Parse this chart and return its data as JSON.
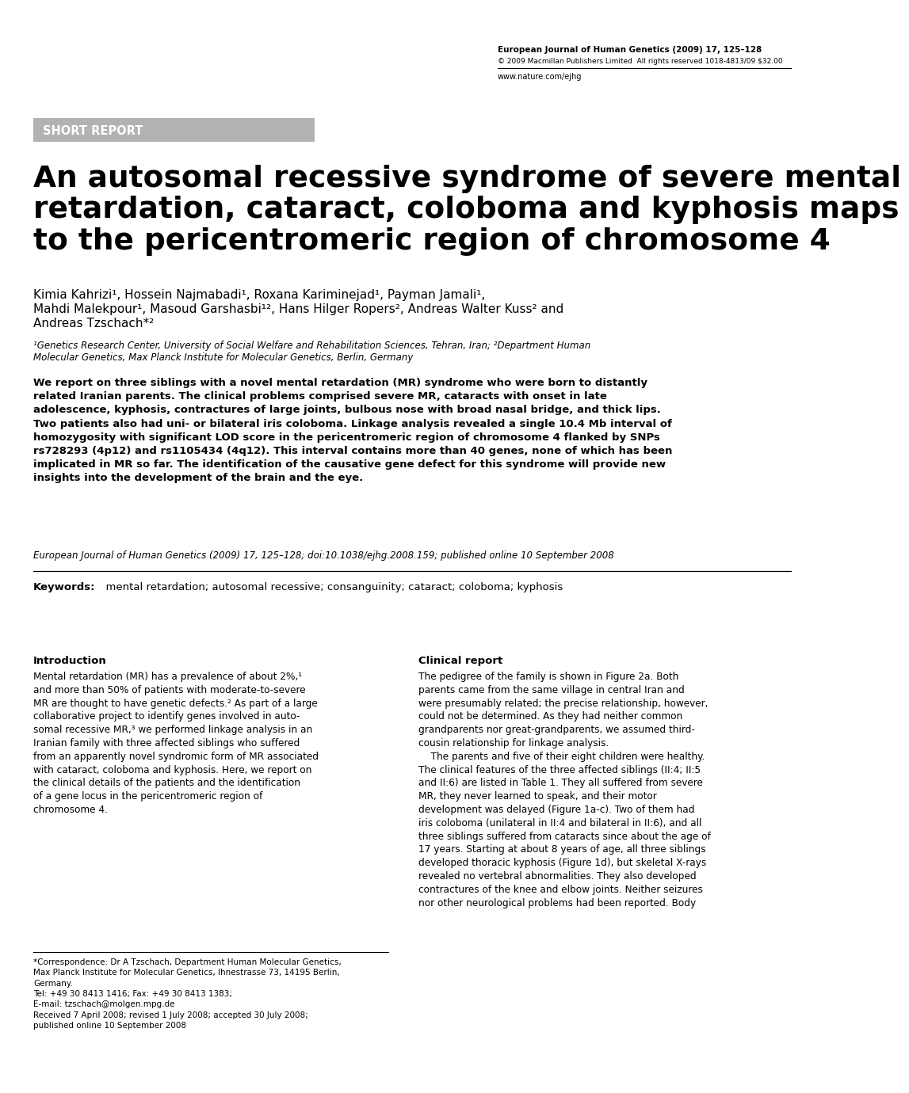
{
  "bg_color": "#ffffff",
  "journal_line1": "European Journal of Human Genetics (2009) 17, 125–128",
  "journal_line2": "© 2009 Macmillan Publishers Limited  All rights reserved 1018-4813/09 $32.00",
  "journal_url": "www.nature.com/ejhg",
  "short_report_label": "SHORT REPORT",
  "short_report_bg": "#b2b2b2",
  "title": "An autosomal recessive syndrome of severe mental\nretardation, cataract, coloboma and kyphosis maps\nto the pericentromeric region of chromosome 4",
  "authors_line1": "Kimia Kahrizi¹, Hossein Najmabadi¹, Roxana Kariminejad¹, Payman Jamali¹,",
  "authors_line2": "Mahdi Malekpour¹, Masoud Garshasbi¹², Hans Hilger Ropers², Andreas Walter Kuss² and",
  "authors_line3": "Andreas Tzschach*²",
  "affiliations_line1": "¹Genetics Research Center, University of Social Welfare and Rehabilitation Sciences, Tehran, Iran; ²Department Human",
  "affiliations_line2": "Molecular Genetics, Max Planck Institute for Molecular Genetics, Berlin, Germany",
  "abstract_bold": "We report on three siblings with a novel mental retardation (MR) syndrome who were born to distantly\nrelated Iranian parents. The clinical problems comprised severe MR, cataracts with onset in late\nadolescence, kyphosis, contractures of large joints, bulbous nose with broad nasal bridge, and thick lips.\nTwo patients also had uni- or bilateral iris coloboma. Linkage analysis revealed a single 10.4 Mb interval of\nhomozygosity with significant LOD score in the pericentromeric region of chromosome 4 flanked by SNPs\nrs728293 (4p12) and rs1105434 (4q12). This interval contains more than 40 genes, none of which has been\nimplicated in MR so far. The identification of the causative gene defect for this syndrome will provide new\ninsights into the development of the brain and the eye.",
  "abstract_italic": "European Journal of Human Genetics (2009) 17, 125–128; doi:10.1038/ejhg.2008.159; published online 10 September 2008",
  "keywords_bold": "Keywords:",
  "keywords_text": "  mental retardation; autosomal recessive; consanguinity; cataract; coloboma; kyphosis",
  "intro_heading": "Introduction",
  "intro_text": "Mental retardation (MR) has a prevalence of about 2%,¹\nand more than 50% of patients with moderate-to-severe\nMR are thought to have genetic defects.² As part of a large\ncollaborative project to identify genes involved in auto-\nsomal recessive MR,³ we performed linkage analysis in an\nIranian family with three affected siblings who suffered\nfrom an apparently novel syndromic form of MR associated\nwith cataract, coloboma and kyphosis. Here, we report on\nthe clinical details of the patients and the identification\nof a gene locus in the pericentromeric region of\nchromosome 4.",
  "clinical_heading": "Clinical report",
  "clinical_text": "The pedigree of the family is shown in Figure 2a. Both\nparents came from the same village in central Iran and\nwere presumably related; the precise relationship, however,\ncould not be determined. As they had neither common\ngrandparents nor great-grandparents, we assumed third-\ncousin relationship for linkage analysis.\n    The parents and five of their eight children were healthy.\nThe clinical features of the three affected siblings (II:4; II:5\nand II:6) are listed in Table 1. They all suffered from severe\nMR, they never learned to speak, and their motor\ndevelopment was delayed (Figure 1a-c). Two of them had\niris coloboma (unilateral in II:4 and bilateral in II:6), and all\nthree siblings suffered from cataracts since about the age of\n17 years. Starting at about 8 years of age, all three siblings\ndeveloped thoracic kyphosis (Figure 1d), but skeletal X-rays\nrevealed no vertebral abnormalities. They also developed\ncontractures of the knee and elbow joints. Neither seizures\nnor other neurological problems had been reported. Body",
  "footnote_text": "*Correspondence: Dr A Tzschach, Department Human Molecular Genetics,\nMax Planck Institute for Molecular Genetics, Ihnestrasse 73, 14195 Berlin,\nGermany.\nTel: +49 30 8413 1416; Fax: +49 30 8413 1383;\nE-mail: tzschach@molgen.mpg.de\nReceived 7 April 2008; revised 1 July 2008; accepted 30 July 2008;\npublished online 10 September 2008"
}
